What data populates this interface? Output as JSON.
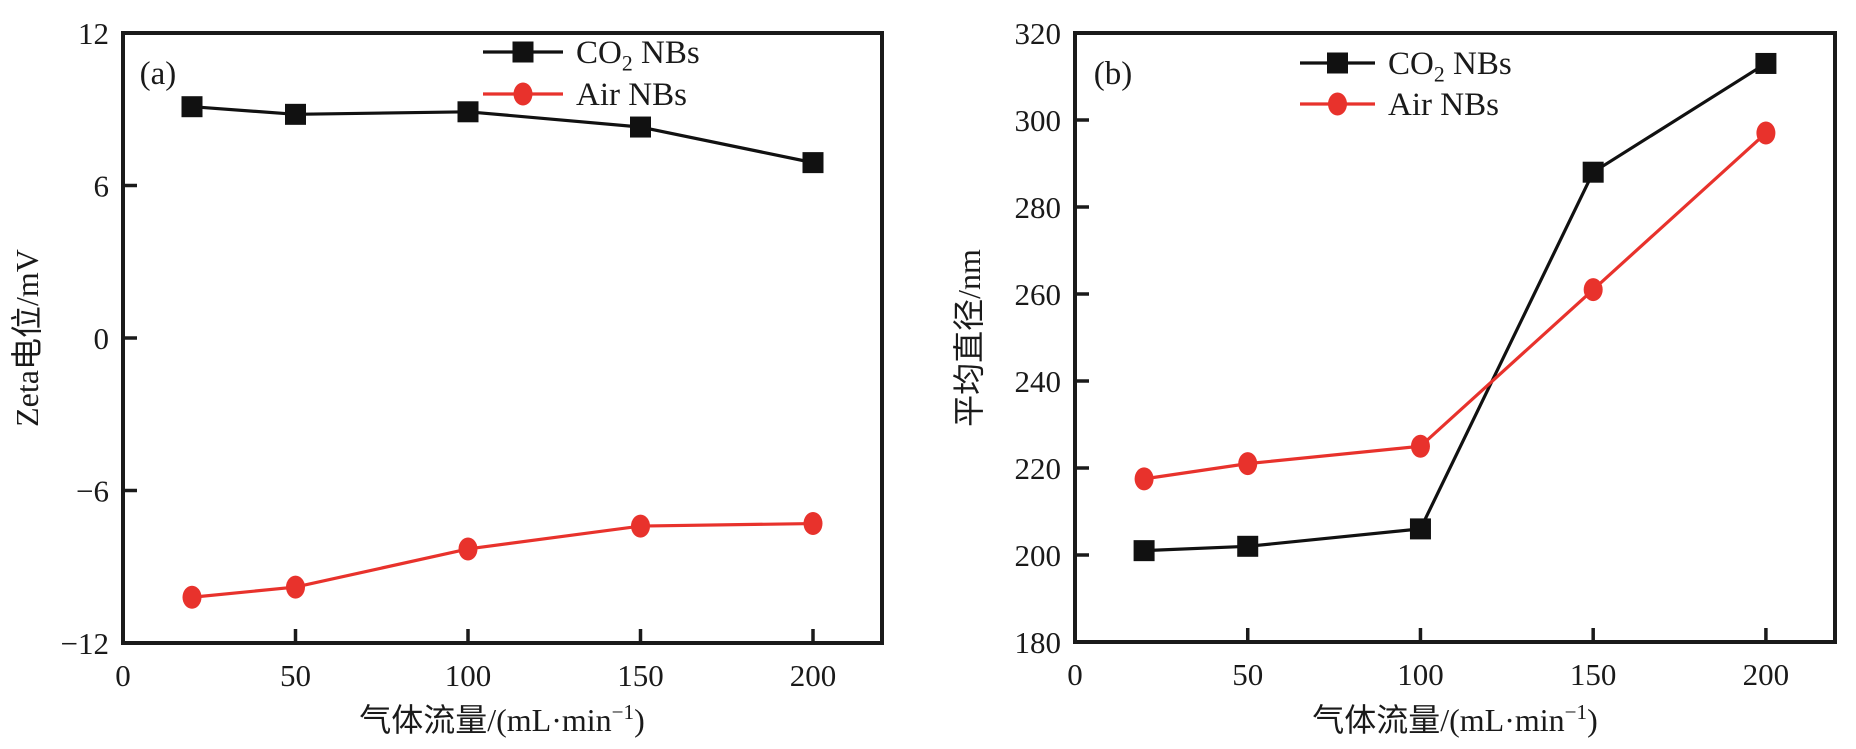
{
  "figure": {
    "background": "#ffffff",
    "ink_color": "#1a1a1a",
    "accent_red": "#e8322c",
    "series_black": "#111111"
  },
  "chart_data": [
    {
      "type": "line",
      "panel_label": "(a)",
      "xlabel": "气体流量/(mL·min⁻¹)",
      "ylabel": "Zeta电位/mV",
      "xlim": [
        0,
        220
      ],
      "ylim": [
        -12,
        12
      ],
      "xticks": [
        0,
        50,
        100,
        150,
        200
      ],
      "yticks": [
        -12,
        -6,
        0,
        6,
        12
      ],
      "x": [
        20,
        50,
        100,
        150,
        200
      ],
      "series": [
        {
          "name": "CO₂ NBs",
          "marker": "square",
          "color": "#111111",
          "values": [
            9.1,
            8.8,
            8.9,
            8.3,
            6.9
          ]
        },
        {
          "name": "Air NBs",
          "marker": "circle",
          "color": "#e8322c",
          "values": [
            -10.2,
            -9.8,
            -8.3,
            -7.4,
            -7.3
          ]
        }
      ],
      "legend_position": "upper-center-inside",
      "grid": false
    },
    {
      "type": "line",
      "panel_label": "(b)",
      "xlabel": "气体流量/(mL·min⁻¹)",
      "ylabel": "平均直径/nm",
      "xlim": [
        0,
        220
      ],
      "ylim": [
        180,
        320
      ],
      "xticks": [
        0,
        50,
        100,
        150,
        200
      ],
      "yticks": [
        180,
        200,
        220,
        240,
        260,
        280,
        300,
        320
      ],
      "x": [
        20,
        50,
        100,
        150,
        200
      ],
      "series": [
        {
          "name": "CO₂ NBs",
          "marker": "square",
          "color": "#111111",
          "values": [
            201,
            202,
            206,
            288,
            313
          ]
        },
        {
          "name": "Air NBs",
          "marker": "circle",
          "color": "#e8322c",
          "values": [
            217.5,
            221,
            225,
            261,
            297
          ]
        }
      ],
      "legend_position": "upper-center-inside",
      "grid": false
    }
  ]
}
